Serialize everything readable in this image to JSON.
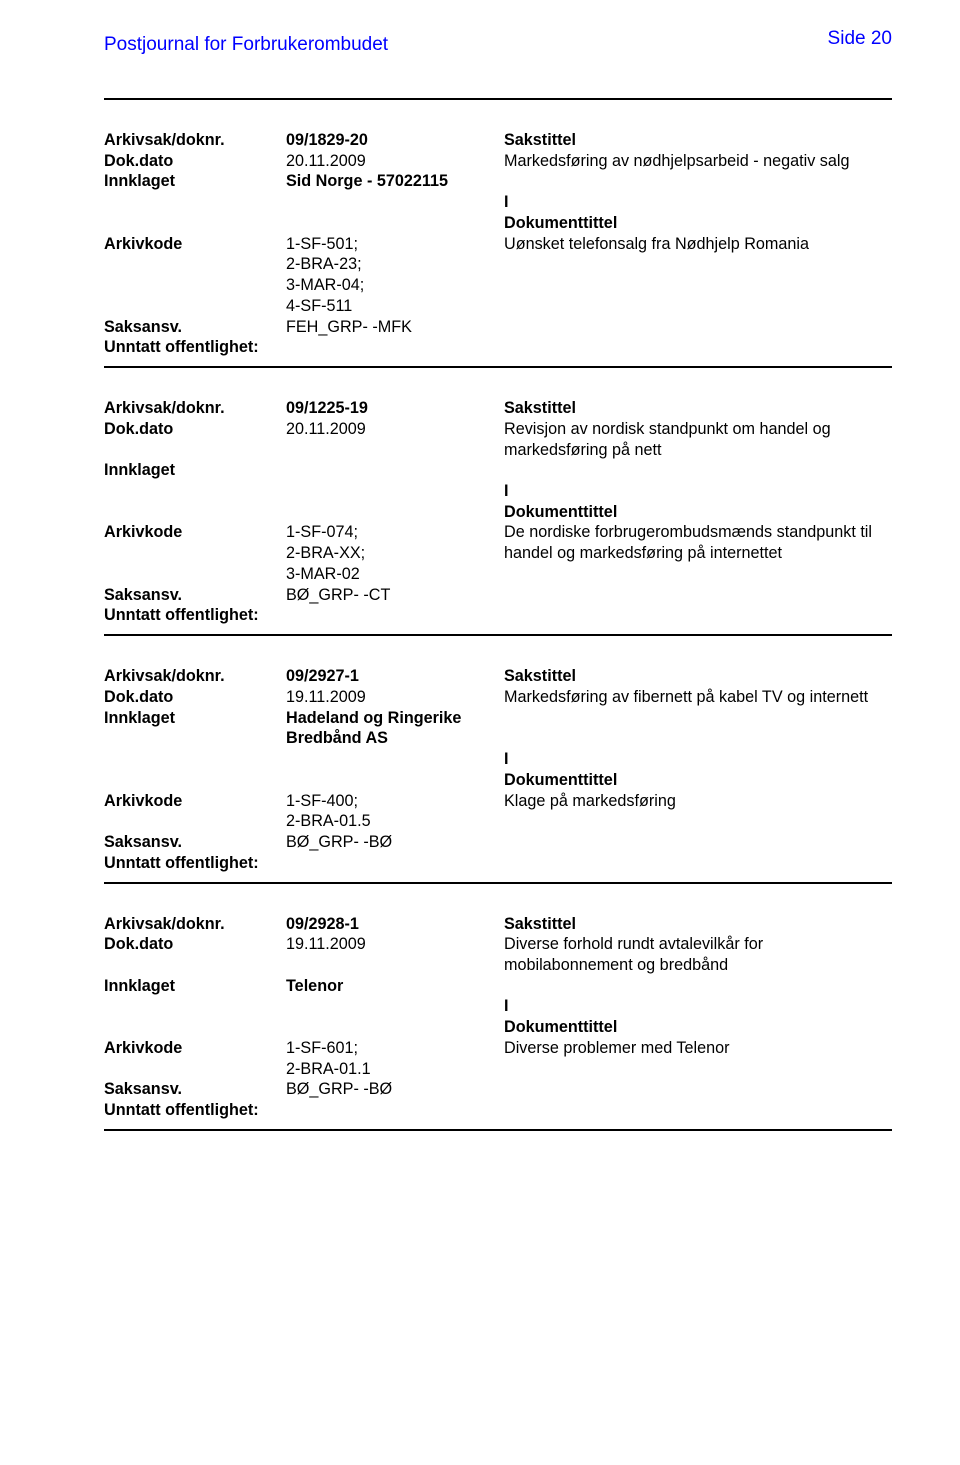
{
  "header": {
    "title": "Postjournal for Forbrukerombudet",
    "page_label": "Side 20"
  },
  "colors": {
    "link_blue": "#0000ff",
    "text": "#000000",
    "bg": "#ffffff",
    "rule": "#000000"
  },
  "labels": {
    "arkivsak": "Arkivsak/doknr.",
    "dokdato": "Dok.dato",
    "innklaget": "Innklaget",
    "arkivkode": "Arkivkode",
    "saksansv": "Saksansv.",
    "unntatt": "Unntatt offentlighet:",
    "sakstittel": "Sakstittel",
    "dokumenttittel": "Dokumenttittel"
  },
  "records": [
    {
      "arkivsak": "09/1829-20",
      "dokdato": "20.11.2009",
      "sakstittel": "Markedsføring av nødhjelpsarbeid - negativ salg",
      "innklaget": "Sid Norge - 57022115",
      "io": "I",
      "arkivkode": "1-SF-501;\n2-BRA-23;\n3-MAR-04;\n4-SF-511",
      "doktittel": "Uønsket telefonsalg fra Nødhjelp Romania",
      "saksansv": "FEH_GRP- -MFK"
    },
    {
      "arkivsak": "09/1225-19",
      "dokdato": "20.11.2009",
      "sakstittel": "Revisjon av nordisk standpunkt om handel og markedsføring på nett",
      "innklaget": "",
      "io": "I",
      "arkivkode": "1-SF-074;\n2-BRA-XX;\n3-MAR-02",
      "doktittel": "De nordiske forbrugerombudsmænds standpunkt til handel og markedsføring på internettet",
      "saksansv": "BØ_GRP- -CT"
    },
    {
      "arkivsak": "09/2927-1",
      "dokdato": "19.11.2009",
      "sakstittel": "Markedsføring av fibernett på kabel TV og internett",
      "innklaget": "Hadeland og Ringerike Bredbånd AS",
      "io": "I",
      "arkivkode": "1-SF-400;\n2-BRA-01.5",
      "doktittel": "Klage på markedsføring",
      "saksansv": "BØ_GRP- -BØ"
    },
    {
      "arkivsak": "09/2928-1",
      "dokdato": "19.11.2009",
      "sakstittel": "Diverse forhold rundt avtalevilkår for mobilabonnement og bredbånd",
      "innklaget": "Telenor",
      "io": "I",
      "arkivkode": "1-SF-601;\n2-BRA-01.1",
      "doktittel": "Diverse problemer med Telenor",
      "saksansv": "BØ_GRP- -BØ"
    }
  ]
}
